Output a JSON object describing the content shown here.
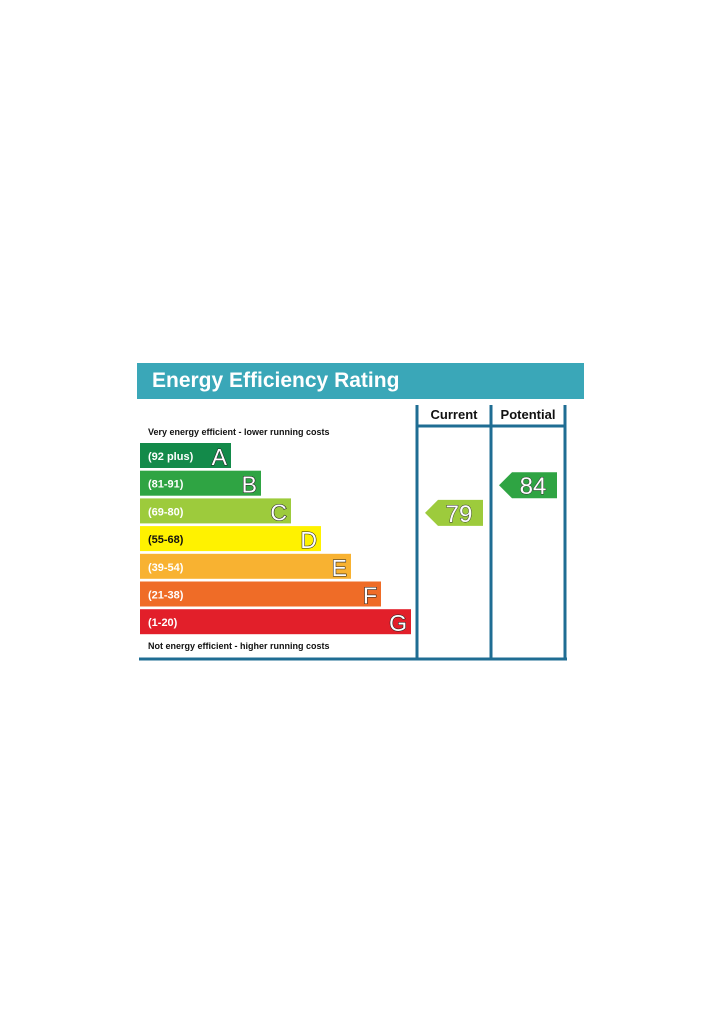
{
  "chart_data": {
    "type": "bar",
    "title": "Energy Efficiency Rating",
    "columns": [
      "Current",
      "Potential"
    ],
    "top_note": "Very energy efficient - lower running costs",
    "bottom_note": "Not energy efficient - higher running costs",
    "bands": [
      {
        "letter": "A",
        "range": "(92 plus)",
        "color": "#138a4a"
      },
      {
        "letter": "B",
        "range": "(81-91)",
        "color": "#2fa443"
      },
      {
        "letter": "C",
        "range": "(69-80)",
        "color": "#9dcb3c"
      },
      {
        "letter": "D",
        "range": "(55-68)",
        "color": "#fff200"
      },
      {
        "letter": "E",
        "range": "(39-54)",
        "color": "#f8b231"
      },
      {
        "letter": "F",
        "range": "(21-38)",
        "color": "#ef6c27"
      },
      {
        "letter": "G",
        "range": "(1-20)",
        "color": "#e21f2a"
      }
    ],
    "ratings": [
      {
        "column": "Current",
        "value": 79,
        "band": "C",
        "color": "#9dcb3c"
      },
      {
        "column": "Potential",
        "value": 84,
        "band": "B",
        "color": "#2fa443"
      }
    ],
    "frame_color": "#1f6d93",
    "header_color": "#3aa7b8"
  }
}
